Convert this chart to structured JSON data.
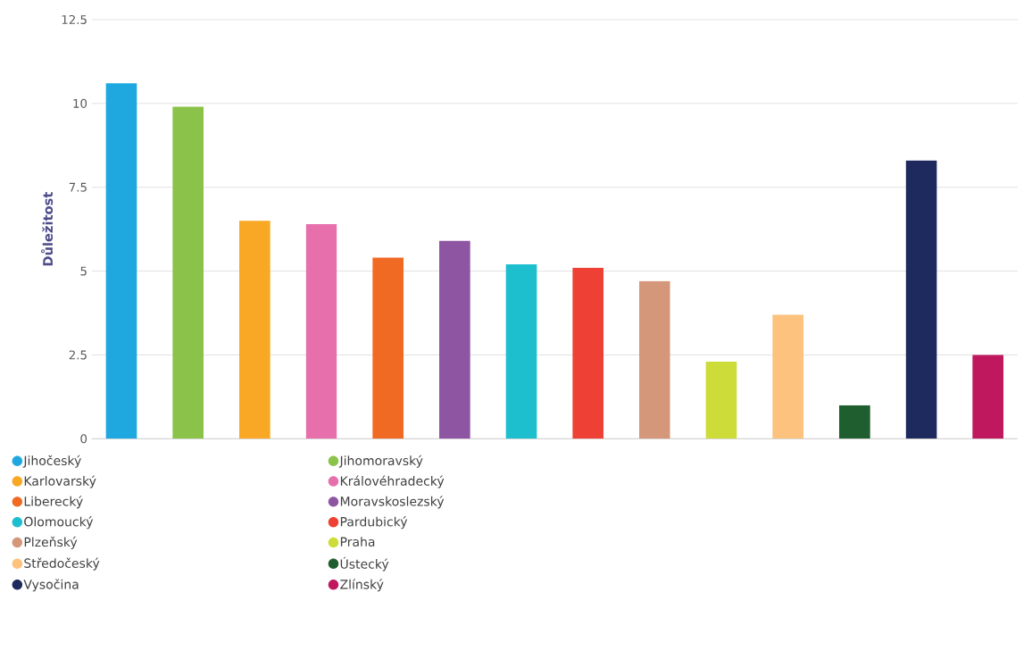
{
  "chart_data": {
    "type": "bar",
    "ylabel": "Důležitost",
    "categories": [
      null
    ],
    "ylim": [
      0,
      12.5
    ],
    "yticks": [
      0,
      2.5,
      5,
      7.5,
      10,
      12.5
    ],
    "grid": "y",
    "legend": "bottom",
    "series": [
      {
        "name": "Jihočeský",
        "color": "#1fa8e0",
        "values": [
          10.6
        ]
      },
      {
        "name": "Jihomoravský",
        "color": "#8bc34a",
        "values": [
          9.9
        ]
      },
      {
        "name": "Karlovarský",
        "color": "#f9a825",
        "values": [
          6.5
        ]
      },
      {
        "name": "Královéhradecký",
        "color": "#e76fac",
        "values": [
          6.4
        ]
      },
      {
        "name": "Liberecký",
        "color": "#f06a24",
        "values": [
          5.4
        ]
      },
      {
        "name": "Moravskoslezský",
        "color": "#8e55a3",
        "values": [
          5.9
        ]
      },
      {
        "name": "Olomoucký",
        "color": "#1dbfcf",
        "values": [
          5.2
        ]
      },
      {
        "name": "Pardubický",
        "color": "#ee4035",
        "values": [
          5.1
        ]
      },
      {
        "name": "Plzeňský",
        "color": "#d4977a",
        "values": [
          4.7
        ]
      },
      {
        "name": "Praha",
        "color": "#cddc39",
        "values": [
          2.3
        ]
      },
      {
        "name": "Středočeský",
        "color": "#fdc27e",
        "values": [
          3.7
        ]
      },
      {
        "name": "Ústecký",
        "color": "#1f5e2e",
        "values": [
          1.0
        ]
      },
      {
        "name": "Vysočina",
        "color": "#1e2a5e",
        "values": [
          8.3
        ]
      },
      {
        "name": "Zlínský",
        "color": "#c0185f",
        "values": [
          2.5
        ]
      }
    ]
  }
}
